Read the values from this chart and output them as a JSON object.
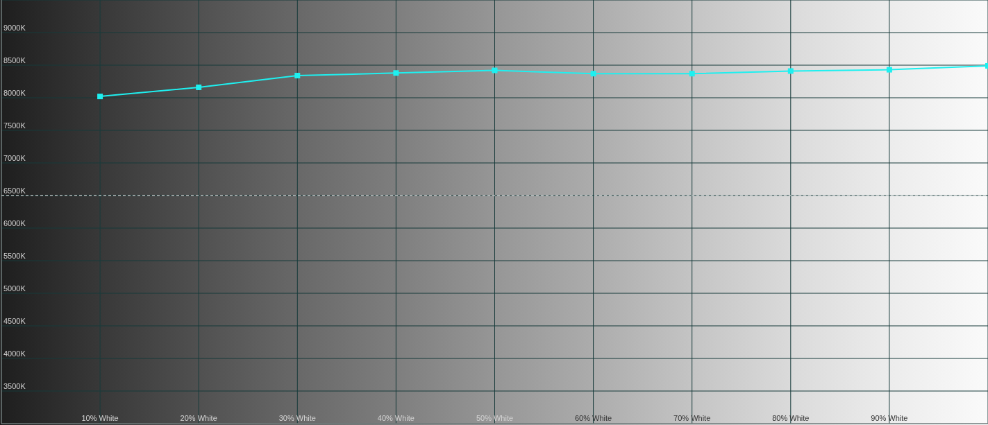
{
  "chart_data": {
    "type": "line",
    "x": [
      10,
      20,
      30,
      40,
      50,
      60,
      70,
      80,
      90,
      100
    ],
    "series": [
      {
        "color": "#1ef0f0",
        "values": [
          8020,
          8160,
          8340,
          8380,
          8420,
          8370,
          8370,
          8410,
          8430,
          8490
        ]
      }
    ],
    "xlim": [
      0,
      100
    ],
    "xticks": [
      {
        "value": 10,
        "label": "10% White"
      },
      {
        "value": 20,
        "label": "20% White"
      },
      {
        "value": 30,
        "label": "30% White"
      },
      {
        "value": 40,
        "label": "40% White"
      },
      {
        "value": 50,
        "label": "50% White"
      },
      {
        "value": 60,
        "label": "60% White"
      },
      {
        "value": 70,
        "label": "70% White"
      },
      {
        "value": 80,
        "label": "80% White"
      },
      {
        "value": 90,
        "label": "90% White"
      }
    ],
    "ylim": [
      3000,
      9500
    ],
    "yticks": [
      {
        "value": 3500,
        "label": "3500K"
      },
      {
        "value": 4000,
        "label": "4000K"
      },
      {
        "value": 4500,
        "label": "4500K"
      },
      {
        "value": 5000,
        "label": "5000K"
      },
      {
        "value": 5500,
        "label": "5500K"
      },
      {
        "value": 6000,
        "label": "6000K"
      },
      {
        "value": 6500,
        "label": "6500K"
      },
      {
        "value": 7000,
        "label": "7000K"
      },
      {
        "value": 7500,
        "label": "7500K"
      },
      {
        "value": 8000,
        "label": "8000K"
      },
      {
        "value": 8500,
        "label": "8500K"
      },
      {
        "value": 9000,
        "label": "9000K"
      }
    ],
    "grid": true,
    "marker": "square",
    "line_style": "solid",
    "ref_lines": [
      {
        "axis": "y",
        "value": 6500,
        "color": "#ffffff",
        "line_style": "dashed"
      }
    ]
  }
}
